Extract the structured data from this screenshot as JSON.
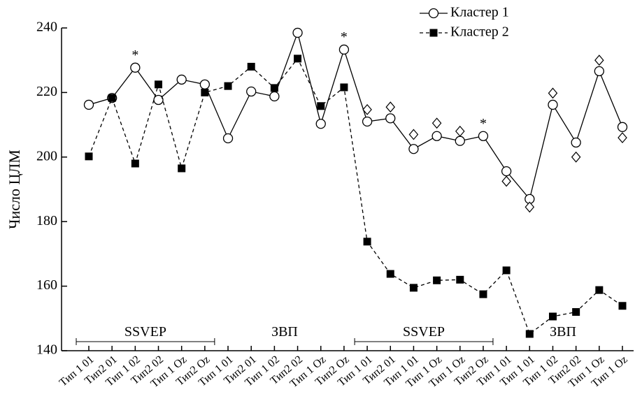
{
  "chart_data": {
    "type": "line",
    "ylabel": "Число ЦЛМ",
    "categories": [
      "Тип 1 01",
      "Тип2 01",
      "Тип 1 02",
      "Тип2 02",
      "Тип 1 Oz",
      "Тип2 Oz",
      "Тип 1 01",
      "Тип2 01",
      "Тип 1 02",
      "Тип2 02",
      "Тип 1 Oz",
      "Тип2 Oz",
      "Тип 1 01",
      "Тип2 01",
      "Тип 1 01",
      "Тип 1 Oz",
      "Тип 1 Oz",
      "Тип2 Oz",
      "Тип 1 01",
      "Тип 1 01",
      "Тип 1 02",
      "Тип2 02",
      "Тип 1 Oz",
      "Тип 1 Oz"
    ],
    "series": [
      {
        "name": "Кластер 1",
        "color": "#000",
        "marker": "circle",
        "dash": false,
        "values": [
          216.2,
          218.3,
          227.7,
          217.7,
          224,
          222.5,
          205.8,
          220.3,
          218.8,
          238.5,
          210.3,
          233.3,
          211,
          212,
          202.5,
          206.5,
          205,
          206.5,
          195.6,
          187,
          216.2,
          204.5,
          226.6,
          209.3
        ]
      },
      {
        "name": "Кластер 2",
        "color": "#000",
        "marker": "square",
        "dash": true,
        "values": [
          200.2,
          218.3,
          198,
          222.5,
          196.5,
          220,
          222,
          228,
          221.4,
          230.5,
          215.8,
          221.6,
          173.8,
          163.8,
          159.5,
          161.8,
          162,
          157.5,
          164.9,
          145.2,
          150.6,
          152,
          158.8,
          153.9
        ]
      }
    ],
    "markers": {
      "shape": "diamond",
      "color": "#000",
      "values": [
        null,
        null,
        null,
        null,
        null,
        null,
        null,
        null,
        null,
        null,
        null,
        null,
        214.7,
        215.5,
        207,
        210.5,
        208,
        null,
        192.5,
        184.5,
        219.8,
        200,
        230,
        206
      ]
    },
    "annotations": [
      {
        "text": "*",
        "index": 2
      },
      {
        "text": "*",
        "index": 11
      },
      {
        "text": "*",
        "index": 17
      }
    ],
    "groups": [
      {
        "label": "SSVEP",
        "start": 0,
        "end": 5,
        "bracket": true
      },
      {
        "label": "ЗВП",
        "start": 6,
        "end": 11,
        "bracket": false
      },
      {
        "label": "SSVEP",
        "start": 12,
        "end": 17,
        "bracket": true
      },
      {
        "label": "ЗВП",
        "start": 18,
        "end": 23,
        "bracket": false
      }
    ],
    "ylim": [
      140,
      240
    ],
    "yticks": [
      140,
      160,
      180,
      200,
      220,
      240
    ],
    "legend": "top-right"
  }
}
